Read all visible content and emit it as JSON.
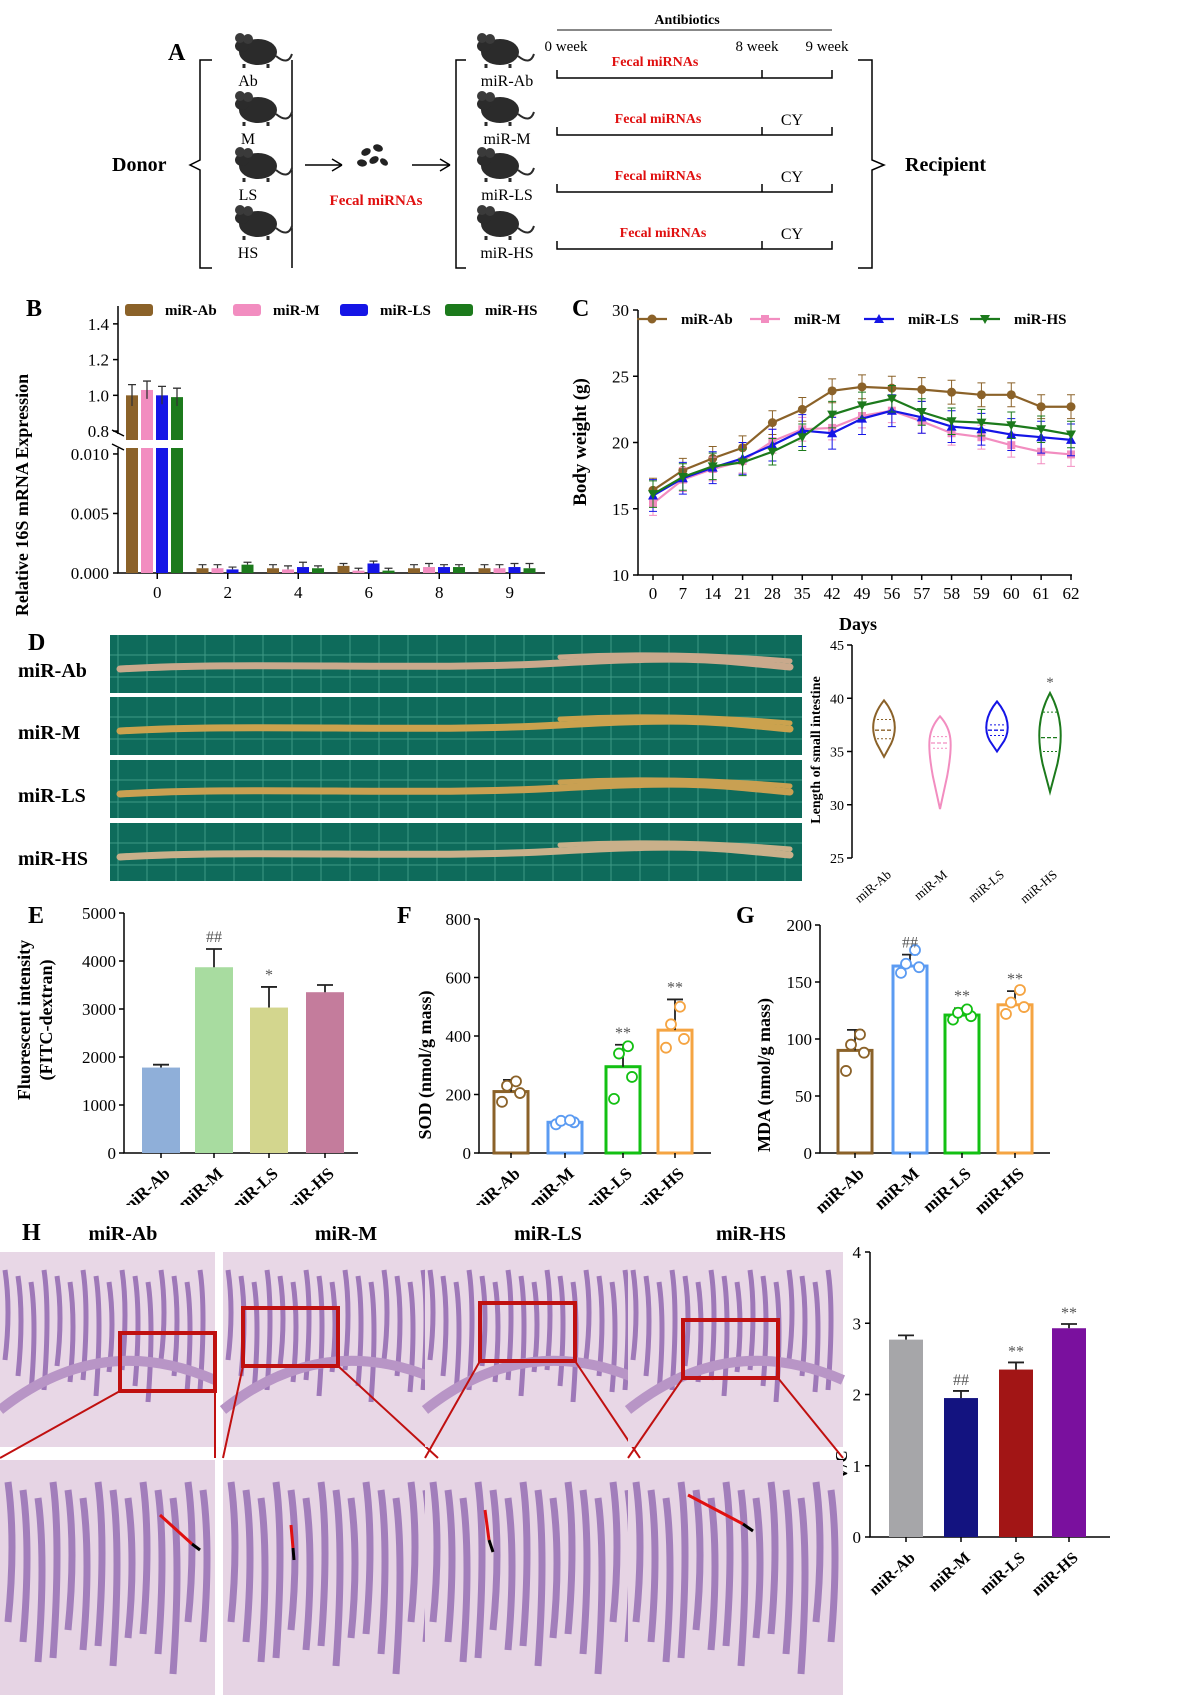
{
  "panels": {
    "A": "A",
    "B": "B",
    "C": "C",
    "D": "D",
    "E": "E",
    "F": "F",
    "G": "G",
    "H": "H"
  },
  "colors": {
    "ab": "#8B6229",
    "m": "#F28DC0",
    "ls": "#1515E6",
    "hs": "#1C7A1C",
    "e_ab": "#8FAFD9",
    "e_m": "#A8DCA0",
    "e_ls": "#D3D68E",
    "e_hs": "#C47C9C",
    "f_ab": "#8B6229",
    "f_m": "#5B9BF2",
    "f_ls": "#13C013",
    "f_hs": "#F5A442",
    "h_ab": "#A6A6A9",
    "h_m": "#131380",
    "h_ls": "#A21515",
    "h_hs": "#7A109E",
    "red_text": "#E01010"
  },
  "schematic": {
    "donor": "Donor",
    "recipient": "Recipient",
    "donor_groups": [
      "Ab",
      "M",
      "LS",
      "HS"
    ],
    "recipient_groups": [
      "miR-Ab",
      "miR-M",
      "miR-LS",
      "miR-HS"
    ],
    "fecal": "Fecal miRNAs",
    "antibiotics": "Antibiotics",
    "weeks": [
      "0 week",
      "8 week",
      "9 week"
    ],
    "cy": "CY"
  },
  "icons": [
    "mouse-icon",
    "feces-icon",
    "arrow-icon",
    "brace-icon"
  ],
  "chart_data": [
    {
      "panel": "B",
      "type": "bar",
      "title": "",
      "ylabel": "Relative 16S mRNA Expression",
      "xlabel": "",
      "categories": [
        "0",
        "2",
        "4",
        "6",
        "8",
        "9"
      ],
      "y_axis_break": true,
      "y_lower_ticks": [
        "0.000",
        "0.005",
        "0.010"
      ],
      "y_upper_ticks": [
        "0.8",
        "1.0",
        "1.2",
        "1.4"
      ],
      "legend": "top",
      "series": [
        {
          "name": "miR-Ab",
          "values": [
            1.0,
            0.0004,
            0.0004,
            0.0006,
            0.0004,
            0.0004
          ],
          "errors": [
            0.06,
            0.0003,
            0.0003,
            0.0002,
            0.0003,
            0.0003
          ]
        },
        {
          "name": "miR-M",
          "values": [
            1.03,
            0.0004,
            0.0003,
            0.0002,
            0.0005,
            0.0004
          ],
          "errors": [
            0.05,
            0.0003,
            0.0003,
            0.0002,
            0.0003,
            0.0003
          ]
        },
        {
          "name": "miR-LS",
          "values": [
            1.0,
            0.0003,
            0.0005,
            0.0008,
            0.0005,
            0.0005
          ],
          "errors": [
            0.05,
            0.0002,
            0.0004,
            0.0002,
            0.0002,
            0.0003
          ]
        },
        {
          "name": "miR-HS",
          "values": [
            0.99,
            0.0007,
            0.0004,
            0.0002,
            0.0005,
            0.0004
          ],
          "errors": [
            0.05,
            0.0002,
            0.0002,
            0.0002,
            0.0002,
            0.0004
          ]
        }
      ]
    },
    {
      "panel": "C",
      "type": "line",
      "title": "",
      "ylabel": "Body weight (g)",
      "xlabel": "Days",
      "categories": [
        "0",
        "7",
        "14",
        "21",
        "28",
        "35",
        "42",
        "49",
        "56",
        "57",
        "58",
        "59",
        "60",
        "61",
        "62"
      ],
      "y_ticks": [
        "10",
        "15",
        "20",
        "25",
        "30"
      ],
      "ylim": [
        10,
        30
      ],
      "legend": "top",
      "series": [
        {
          "name": "miR-Ab",
          "values": [
            16.4,
            17.9,
            18.8,
            19.6,
            21.5,
            22.5,
            23.9,
            24.2,
            24.1,
            24.0,
            23.8,
            23.6,
            23.6,
            22.7,
            22.7
          ],
          "error": 0.9
        },
        {
          "name": "miR-M",
          "values": [
            15.4,
            17.2,
            18.0,
            18.6,
            20.1,
            21.0,
            21.1,
            22.0,
            22.4,
            21.6,
            20.7,
            20.4,
            19.8,
            19.3,
            19.1
          ],
          "error": 0.9
        },
        {
          "name": "miR-LS",
          "values": [
            16.0,
            17.3,
            18.1,
            18.8,
            19.8,
            20.9,
            20.7,
            21.8,
            22.4,
            21.9,
            21.2,
            21.0,
            20.6,
            20.4,
            20.2
          ],
          "error": 1.2
        },
        {
          "name": "miR-HS",
          "values": [
            16.1,
            17.4,
            18.2,
            18.5,
            19.3,
            20.4,
            22.1,
            22.8,
            23.3,
            22.3,
            21.6,
            21.5,
            21.3,
            21.0,
            20.6
          ],
          "error": 1.0
        }
      ]
    },
    {
      "panel": "D",
      "type": "violin",
      "title": "",
      "ylabel": "Length of small intestine",
      "xlabel": "",
      "categories": [
        "miR-Ab",
        "miR-M",
        "miR-LS",
        "miR-HS"
      ],
      "y_ticks": [
        "25",
        "30",
        "35",
        "40",
        "45"
      ],
      "ylim": [
        25,
        45
      ],
      "violins": [
        {
          "min": 34.5,
          "max": 39.8,
          "median": 37.0,
          "q1": 36.2,
          "q3": 38.0
        },
        {
          "min": 29.6,
          "max": 38.3,
          "median": 35.8,
          "q1": 35.3,
          "q3": 36.4
        },
        {
          "min": 35.0,
          "max": 39.7,
          "median": 37.0,
          "q1": 36.5,
          "q3": 37.5
        },
        {
          "min": 31.2,
          "max": 40.5,
          "median": 36.3,
          "q1": 35.0,
          "q3": 38.7
        }
      ],
      "sig": [
        "",
        "",
        "",
        "*"
      ],
      "images": [
        {
          "label": "miR-Ab"
        },
        {
          "label": "miR-M"
        },
        {
          "label": "miR-LS"
        },
        {
          "label": "miR-HS"
        }
      ]
    },
    {
      "panel": "E",
      "type": "bar",
      "title": "",
      "ylabel": "Fluorescent intensity (FITC-dextran)",
      "xlabel": "",
      "categories": [
        "miR-Ab",
        "miR-M",
        "miR-LS",
        "miR-HS"
      ],
      "y_ticks": [
        "0",
        "1000",
        "2000",
        "3000",
        "4000",
        "5000"
      ],
      "ylim": [
        0,
        5000
      ],
      "values": [
        1780,
        3870,
        3030,
        3350
      ],
      "errors": [
        60,
        380,
        430,
        150
      ],
      "sig": [
        "",
        "##",
        "*",
        ""
      ]
    },
    {
      "panel": "F",
      "type": "bar",
      "title": "",
      "ylabel": "SOD (nmol/g mass)",
      "xlabel": "",
      "categories": [
        "miR-Ab",
        "miR-M",
        "miR-LS",
        "miR-HS"
      ],
      "y_ticks": [
        "0",
        "200",
        "400",
        "600",
        "800"
      ],
      "ylim": [
        0,
        800
      ],
      "values": [
        210,
        105,
        295,
        420
      ],
      "errors": [
        40,
        15,
        75,
        105
      ],
      "points": [
        [
          175,
          205,
          230,
          245
        ],
        [
          98,
          105,
          110,
          112
        ],
        [
          185,
          260,
          340,
          365
        ],
        [
          360,
          390,
          440,
          500
        ]
      ],
      "sig": [
        "",
        "",
        "**",
        "**"
      ]
    },
    {
      "panel": "G",
      "type": "bar",
      "title": "",
      "ylabel": "MDA (nmol/g mass)",
      "xlabel": "",
      "categories": [
        "miR-Ab",
        "miR-M",
        "miR-LS",
        "miR-HS"
      ],
      "y_ticks": [
        "0",
        "50",
        "100",
        "150",
        "200"
      ],
      "ylim": [
        0,
        200
      ],
      "values": [
        90,
        164,
        121,
        130
      ],
      "errors": [
        18,
        10,
        6,
        12
      ],
      "points": [
        [
          72,
          88,
          95,
          104
        ],
        [
          158,
          163,
          166,
          178
        ],
        [
          117,
          120,
          123,
          126
        ],
        [
          122,
          128,
          132,
          143
        ]
      ],
      "sig": [
        "",
        "##",
        "**",
        "**"
      ]
    },
    {
      "panel": "H",
      "type": "bar",
      "title": "",
      "ylabel": "V/C",
      "xlabel": "",
      "categories": [
        "miR-Ab",
        "miR-M",
        "miR-LS",
        "miR-HS"
      ],
      "y_ticks": [
        "0",
        "1",
        "2",
        "3",
        "4"
      ],
      "ylim": [
        0,
        4
      ],
      "values": [
        2.77,
        1.95,
        2.35,
        2.93
      ],
      "errors": [
        0.06,
        0.1,
        0.1,
        0.06
      ],
      "sig": [
        "",
        "##",
        "**",
        "**"
      ],
      "images": [
        {
          "label": "miR-Ab"
        },
        {
          "label": "miR-M"
        },
        {
          "label": "miR-LS"
        },
        {
          "label": "miR-HS"
        }
      ]
    }
  ]
}
